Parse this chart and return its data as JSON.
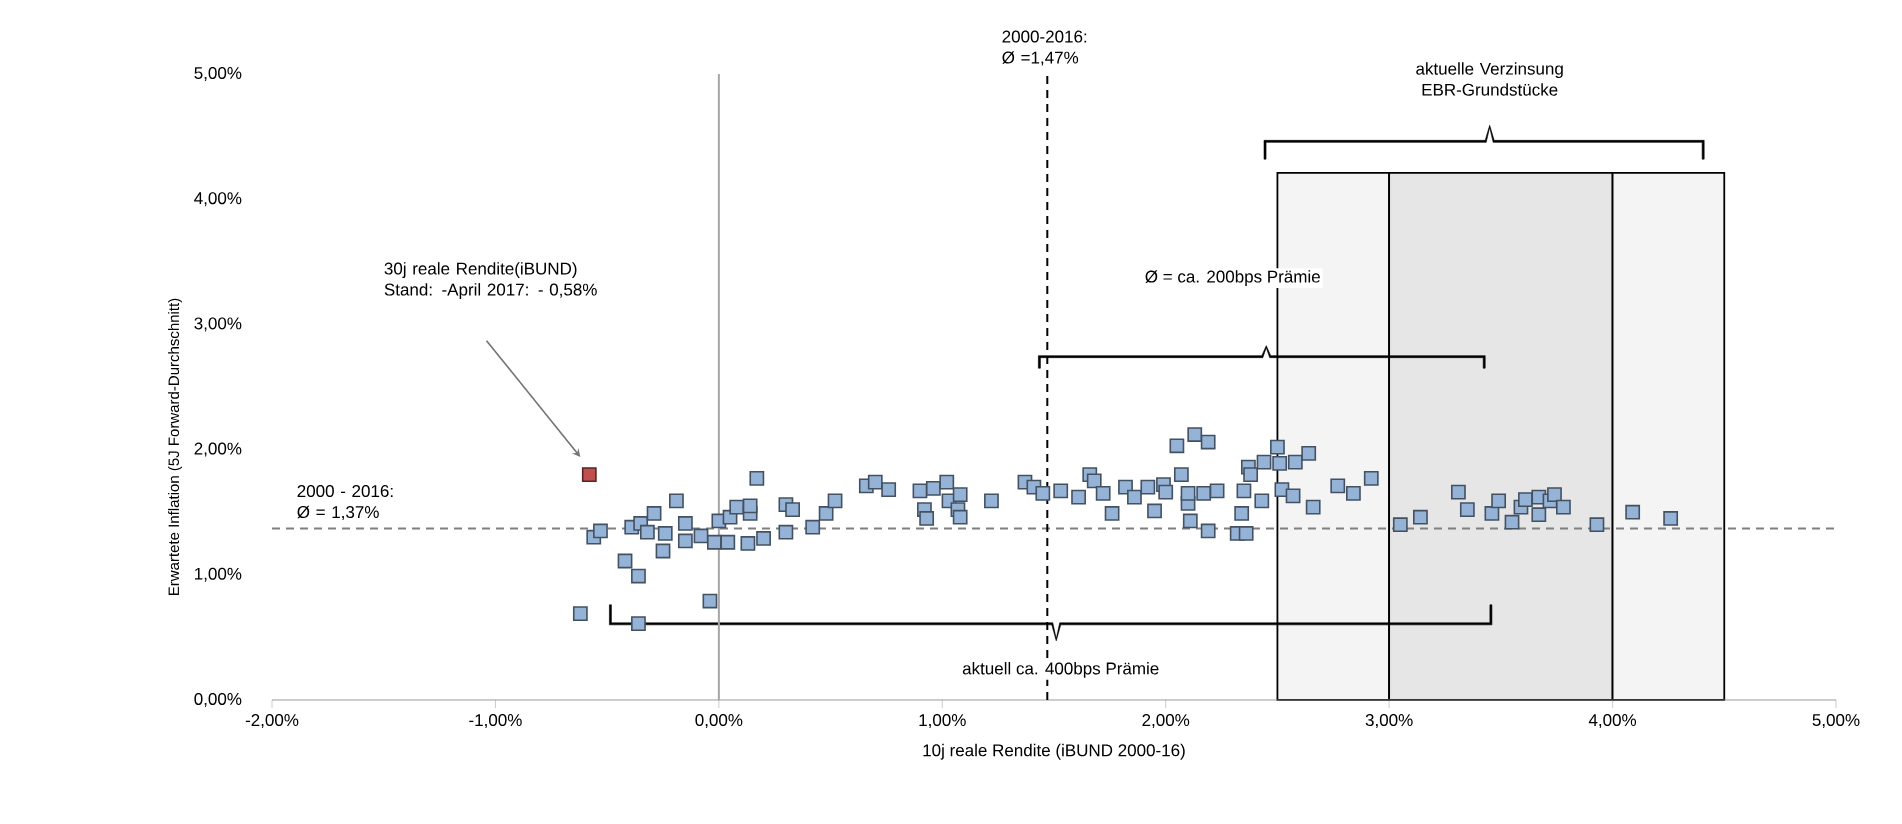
{
  "chart_data": {
    "type": "scatter",
    "xlabel": "10j reale Rendite (iBUND 2000-16)",
    "ylabel": "Erwartete Inflation (5J Forward-Durchschnitt)",
    "xlim": [
      -2,
      5
    ],
    "ylim": [
      0,
      5
    ],
    "xticks": [
      {
        "value": -2,
        "label": "-2,00%"
      },
      {
        "value": -1,
        "label": "-1,00%"
      },
      {
        "value": 0,
        "label": "0,00%"
      },
      {
        "value": 1,
        "label": "1,00%"
      },
      {
        "value": 2,
        "label": "2,00%"
      },
      {
        "value": 3,
        "label": "3,00%"
      },
      {
        "value": 4,
        "label": "4,00%"
      },
      {
        "value": 5,
        "label": "5,00%"
      }
    ],
    "yticks": [
      {
        "value": 0,
        "label": "0,00%"
      },
      {
        "value": 1,
        "label": "1,00%"
      },
      {
        "value": 2,
        "label": "2,00%"
      },
      {
        "value": 3,
        "label": "3,00%"
      },
      {
        "value": 4,
        "label": "4,00%"
      },
      {
        "value": 5,
        "label": "5,00%"
      }
    ],
    "marker": "square",
    "series": [
      {
        "color": "#95b3d7",
        "x": [
          -0.62,
          -0.56,
          -0.53,
          -0.42,
          -0.36,
          -0.36,
          -0.39,
          -0.35,
          -0.29,
          -0.32,
          -0.24,
          -0.25,
          -0.19,
          -0.15,
          -0.15,
          -0.08,
          -0.04,
          -0.02,
          0.0,
          0.04,
          0.05,
          0.08,
          0.13,
          0.14,
          0.14,
          0.2,
          0.17,
          0.3,
          0.33,
          0.3,
          0.42,
          0.48,
          0.52,
          0.66,
          0.7,
          0.76,
          0.9,
          0.92,
          0.93,
          0.96,
          1.02,
          1.03,
          1.07,
          1.08,
          1.08,
          1.22,
          1.37,
          1.41,
          1.45,
          1.53,
          1.61,
          1.66,
          1.68,
          1.72,
          1.76,
          1.82,
          1.86,
          1.92,
          1.95,
          1.99,
          2.0,
          2.05,
          2.13,
          2.19,
          2.07,
          2.1,
          2.11,
          2.17,
          2.19,
          2.23,
          2.1,
          2.32,
          2.36,
          2.34,
          2.37,
          2.38,
          2.35,
          2.43,
          2.44,
          2.5,
          2.51,
          2.52,
          2.57,
          2.58,
          2.64,
          2.66,
          2.77,
          2.84,
          2.92,
          3.05,
          3.14,
          3.31,
          3.35,
          3.46,
          3.49,
          3.55,
          3.59,
          3.61,
          3.67,
          3.67,
          3.72,
          3.74,
          3.78,
          3.93,
          4.09,
          4.26
        ],
        "values": [
          0.69,
          1.3,
          1.35,
          1.11,
          0.99,
          0.61,
          1.38,
          1.41,
          1.49,
          1.34,
          1.33,
          1.19,
          1.59,
          1.41,
          1.27,
          1.31,
          0.79,
          1.26,
          1.43,
          1.26,
          1.46,
          1.54,
          1.25,
          1.49,
          1.55,
          1.29,
          1.77,
          1.56,
          1.52,
          1.34,
          1.38,
          1.49,
          1.59,
          1.71,
          1.74,
          1.68,
          1.67,
          1.52,
          1.45,
          1.69,
          1.74,
          1.59,
          1.52,
          1.64,
          1.46,
          1.59,
          1.74,
          1.7,
          1.65,
          1.67,
          1.62,
          1.8,
          1.75,
          1.65,
          1.49,
          1.7,
          1.62,
          1.7,
          1.51,
          1.72,
          1.66,
          2.03,
          2.12,
          2.06,
          1.8,
          1.57,
          1.43,
          1.65,
          1.35,
          1.67,
          1.65,
          1.33,
          1.33,
          1.49,
          1.86,
          1.8,
          1.67,
          1.59,
          1.9,
          2.02,
          1.89,
          1.68,
          1.63,
          1.9,
          1.97,
          1.54,
          1.71,
          1.65,
          1.77,
          1.4,
          1.46,
          1.66,
          1.52,
          1.49,
          1.59,
          1.42,
          1.54,
          1.6,
          1.48,
          1.62,
          1.59,
          1.64,
          1.54,
          1.4,
          1.5,
          1.45
        ]
      },
      {
        "color": "#c0504d",
        "x": [
          -0.58
        ],
        "values": [
          1.8
        ]
      }
    ],
    "ref_lines": [
      {
        "axis": "x",
        "value": 0,
        "color": "#a6a6a6",
        "line_style": "solid"
      },
      {
        "axis": "y",
        "value": 1.37,
        "label": "2000 - 2016: Ø = 1,37%",
        "color": "#7f7f7f",
        "line_style": "dashed"
      },
      {
        "axis": "x",
        "value": 1.47,
        "label": "2000-2016: Ø =1,47%",
        "color": "#000000",
        "line_style": "dashed"
      }
    ],
    "bands": [
      {
        "axis": "x",
        "from": 2.5,
        "to": 3,
        "color": "#f4f4f4"
      },
      {
        "axis": "x",
        "from": 3,
        "to": 4,
        "color": "#e6e6e6"
      },
      {
        "axis": "x",
        "from": 4,
        "to": 4.5,
        "color": "#f4f4f4"
      }
    ],
    "annotations": [
      "30j reale Rendite(iBUND) Stand: -April 2017: - 0,58%",
      "aktuelle Verzinsung EBR-Grundstücke",
      "Ø = ca. 200bps Prämie",
      "aktuell ca. 400bps Prämie"
    ]
  }
}
